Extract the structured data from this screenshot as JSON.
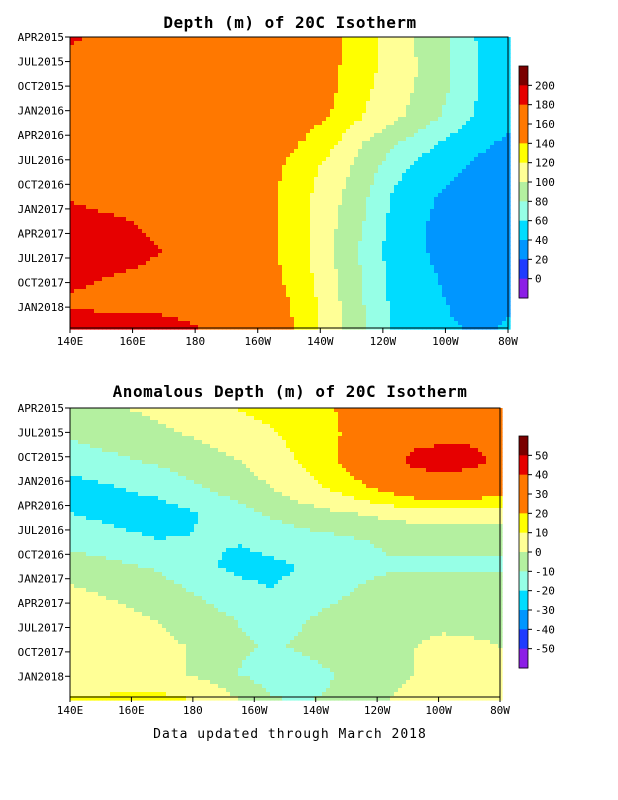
{
  "footer": "Data updated through March 2018",
  "chart_data": [
    {
      "type": "heatmap",
      "title": "Depth (m) of 20C Isotherm",
      "x_ticks": [
        "140E",
        "160E",
        "180",
        "160W",
        "140W",
        "120W",
        "100W",
        "80W"
      ],
      "y_ticks": [
        "APR2015",
        "JUL2015",
        "OCT2015",
        "JAN2016",
        "APR2016",
        "JUL2016",
        "OCT2016",
        "JAN2017",
        "APR2017",
        "JUL2017",
        "OCT2017",
        "JAN2018"
      ],
      "colorbar": {
        "labels": [
          "200",
          "180",
          "160",
          "140",
          "120",
          "100",
          "80",
          "60",
          "40",
          "20",
          "0"
        ],
        "colors": [
          "#7a0000",
          "#e60000",
          "#ff7800",
          "#ff7800",
          "#ffff00",
          "#ffff96",
          "#b4f0a0",
          "#96ffe6",
          "#00dcff",
          "#0096ff",
          "#1e3cff",
          "#8c1ee6"
        ]
      },
      "z_range": [
        -10,
        210
      ],
      "grid": "contour",
      "rows": [
        [
          175,
          172,
          170,
          168,
          166,
          164,
          160,
          158,
          150,
          140,
          125,
          110,
          95,
          80,
          60,
          50
        ],
        [
          170,
          168,
          166,
          164,
          162,
          160,
          158,
          155,
          150,
          140,
          125,
          112,
          98,
          82,
          62,
          52
        ],
        [
          168,
          166,
          164,
          162,
          160,
          158,
          155,
          152,
          148,
          138,
          122,
          110,
          96,
          80,
          62,
          50
        ],
        [
          166,
          164,
          162,
          160,
          158,
          155,
          152,
          150,
          145,
          135,
          118,
          105,
          92,
          76,
          58,
          48
        ],
        [
          165,
          164,
          162,
          160,
          158,
          154,
          150,
          145,
          135,
          120,
          100,
          85,
          70,
          58,
          48,
          42
        ],
        [
          168,
          166,
          164,
          162,
          160,
          156,
          150,
          140,
          125,
          110,
          92,
          70,
          55,
          48,
          40,
          36
        ],
        [
          172,
          170,
          168,
          166,
          162,
          158,
          150,
          138,
          122,
          105,
          85,
          62,
          48,
          42,
          36,
          34
        ],
        [
          178,
          176,
          174,
          170,
          166,
          160,
          150,
          138,
          122,
          102,
          82,
          58,
          46,
          40,
          36,
          36
        ],
        [
          182,
          180,
          178,
          174,
          168,
          162,
          150,
          138,
          122,
          100,
          78,
          56,
          46,
          40,
          38,
          40
        ],
        [
          176,
          174,
          172,
          170,
          166,
          160,
          150,
          140,
          124,
          102,
          80,
          58,
          48,
          42,
          40,
          42
        ],
        [
          172,
          170,
          168,
          168,
          166,
          162,
          156,
          145,
          128,
          105,
          82,
          60,
          50,
          44,
          42,
          44
        ],
        [
          178,
          180,
          182,
          180,
          176,
          170,
          160,
          148,
          130,
          108,
          85,
          62,
          52,
          46,
          44,
          46
        ]
      ]
    },
    {
      "type": "heatmap",
      "title": "Anomalous Depth (m) of 20C Isotherm",
      "x_ticks": [
        "140E",
        "160E",
        "180",
        "160W",
        "140W",
        "120W",
        "100W",
        "80W"
      ],
      "y_ticks": [
        "APR2015",
        "JUL2015",
        "OCT2015",
        "JAN2016",
        "APR2016",
        "JUL2016",
        "OCT2016",
        "JAN2017",
        "APR2017",
        "JUL2017",
        "OCT2017",
        "JAN2018"
      ],
      "colorbar": {
        "labels": [
          "50",
          "40",
          "30",
          "20",
          "10",
          "0",
          "-10",
          "-20",
          "-30",
          "-40",
          "-50"
        ],
        "colors": [
          "#7a0000",
          "#e60000",
          "#ff7800",
          "#ff7800",
          "#ffff00",
          "#ffff96",
          "#b4f0a0",
          "#96ffe6",
          "#00dcff",
          "#0096ff",
          "#1e3cff",
          "#8c1ee6"
        ]
      },
      "z_range": [
        -55,
        55
      ],
      "grid": "contour",
      "rows": [
        [
          -5,
          -2,
          0,
          2,
          5,
          8,
          10,
          12,
          15,
          18,
          20,
          22,
          24,
          25,
          26,
          26
        ],
        [
          -8,
          -6,
          -4,
          -2,
          0,
          2,
          5,
          8,
          12,
          16,
          22,
          28,
          32,
          34,
          34,
          32
        ],
        [
          -14,
          -12,
          -10,
          -8,
          -5,
          -2,
          0,
          5,
          10,
          16,
          24,
          32,
          40,
          42,
          40,
          34
        ],
        [
          -22,
          -20,
          -18,
          -16,
          -12,
          -8,
          -4,
          0,
          5,
          10,
          16,
          22,
          28,
          30,
          28,
          24
        ],
        [
          -18,
          -20,
          -22,
          -22,
          -20,
          -16,
          -12,
          -8,
          -4,
          -2,
          0,
          2,
          4,
          5,
          5,
          4
        ],
        [
          -12,
          -14,
          -16,
          -18,
          -18,
          -18,
          -18,
          -16,
          -14,
          -12,
          -10,
          -8,
          -8,
          -8,
          -8,
          -8
        ],
        [
          -4,
          -6,
          -8,
          -10,
          -14,
          -18,
          -20,
          -20,
          -18,
          -16,
          -12,
          -10,
          -10,
          -10,
          -10,
          -10
        ],
        [
          2,
          0,
          -2,
          -4,
          -8,
          -12,
          -16,
          -18,
          -16,
          -12,
          -8,
          -6,
          -6,
          -6,
          -6,
          -6
        ],
        [
          6,
          4,
          2,
          0,
          -2,
          -6,
          -10,
          -12,
          -10,
          -6,
          -4,
          -2,
          -2,
          -2,
          -4,
          -4
        ],
        [
          8,
          6,
          4,
          2,
          0,
          -4,
          -8,
          -10,
          -8,
          -4,
          -2,
          0,
          0,
          2,
          2,
          0
        ],
        [
          6,
          4,
          4,
          2,
          0,
          -4,
          -10,
          -14,
          -14,
          -10,
          -6,
          -2,
          0,
          2,
          2,
          0
        ],
        [
          10,
          10,
          12,
          12,
          10,
          6,
          0,
          -8,
          -10,
          -8,
          -4,
          0,
          2,
          4,
          6,
          4
        ]
      ]
    }
  ]
}
